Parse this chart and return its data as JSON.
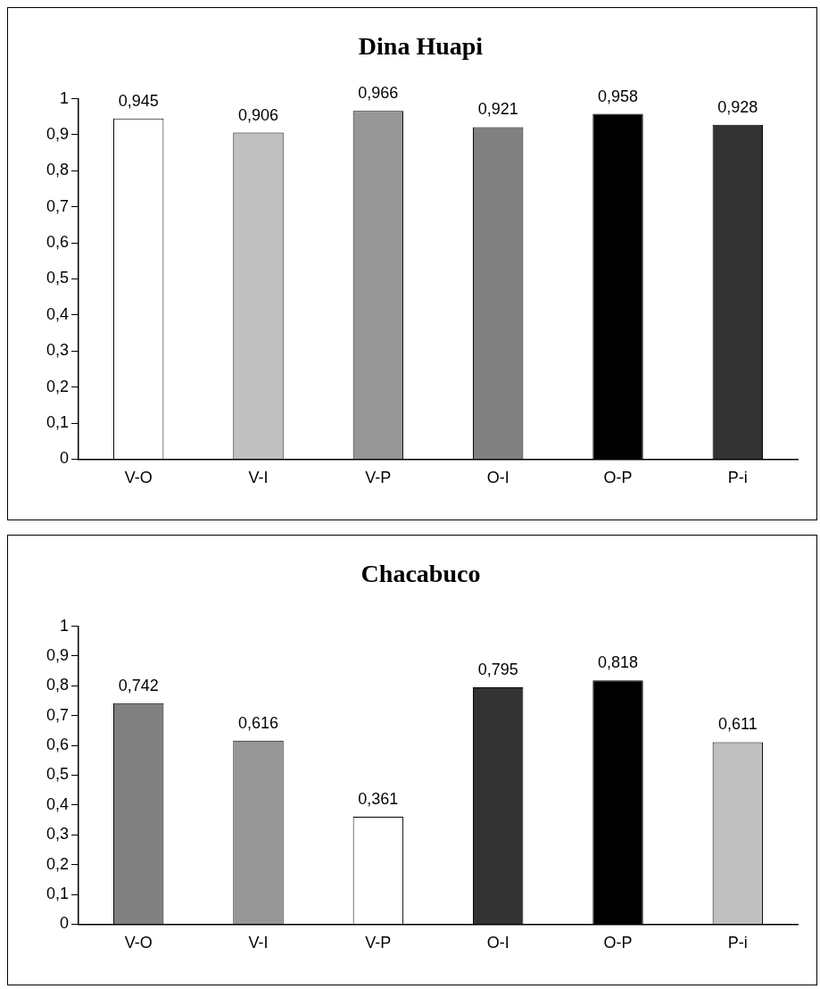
{
  "chart_data": [
    {
      "type": "bar",
      "title": "Dina Huapi",
      "categories": [
        "V-O",
        "V-I",
        "V-P",
        "O-I",
        "O-P",
        "P-i"
      ],
      "values": [
        0.945,
        0.906,
        0.966,
        0.921,
        0.958,
        0.928
      ],
      "colors": [
        "#ffffff",
        "#c0c0c0",
        "#969696",
        "#808080",
        "#000000",
        "#333333"
      ],
      "value_labels": [
        "0,945",
        "0,906",
        "0,966",
        "0,921",
        "0,958",
        "0,928"
      ],
      "ylim": [
        0,
        1
      ],
      "yticks": [
        {
          "value": 0,
          "label": "0"
        },
        {
          "value": 0.1,
          "label": "0,1"
        },
        {
          "value": 0.2,
          "label": "0,2"
        },
        {
          "value": 0.3,
          "label": "0,3"
        },
        {
          "value": 0.4,
          "label": "0,4"
        },
        {
          "value": 0.5,
          "label": "0,5"
        },
        {
          "value": 0.6,
          "label": "0,6"
        },
        {
          "value": 0.7,
          "label": "0,7"
        },
        {
          "value": 0.8,
          "label": "0,8"
        },
        {
          "value": 0.9,
          "label": "0,9"
        },
        {
          "value": 1,
          "label": "1"
        }
      ],
      "grid": false,
      "legend": false
    },
    {
      "type": "bar",
      "title": "Chacabuco",
      "categories": [
        "V-O",
        "V-I",
        "V-P",
        "O-I",
        "O-P",
        "P-i"
      ],
      "values": [
        0.742,
        0.616,
        0.361,
        0.795,
        0.818,
        0.611
      ],
      "colors": [
        "#808080",
        "#969696",
        "#ffffff",
        "#333333",
        "#000000",
        "#c0c0c0"
      ],
      "value_labels": [
        "0,742",
        "0,616",
        "0,361",
        "0,795",
        "0,818",
        "0,611"
      ],
      "ylim": [
        0,
        1
      ],
      "yticks": [
        {
          "value": 0,
          "label": "0"
        },
        {
          "value": 0.1,
          "label": "0,1"
        },
        {
          "value": 0.2,
          "label": "0,2"
        },
        {
          "value": 0.3,
          "label": "0,3"
        },
        {
          "value": 0.4,
          "label": "0,4"
        },
        {
          "value": 0.5,
          "label": "0,5"
        },
        {
          "value": 0.6,
          "label": "0,6"
        },
        {
          "value": 0.7,
          "label": "0,7"
        },
        {
          "value": 0.8,
          "label": "0,8"
        },
        {
          "value": 0.9,
          "label": "0,9"
        },
        {
          "value": 1,
          "label": "1"
        }
      ],
      "grid": false,
      "legend": false
    }
  ]
}
